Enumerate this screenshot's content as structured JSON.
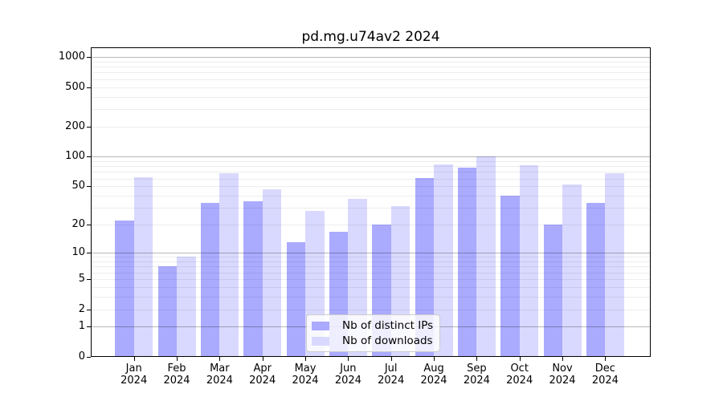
{
  "title": "pd.mg.u74av2 2024",
  "chart_data": {
    "type": "bar",
    "title": "pd.mg.u74av2 2024",
    "categories": [
      "Jan 2024",
      "Feb 2024",
      "Mar 2024",
      "Apr 2024",
      "May 2024",
      "Jun 2024",
      "Jul 2024",
      "Aug 2024",
      "Sep 2024",
      "Oct 2024",
      "Nov 2024",
      "Dec 2024"
    ],
    "series": [
      {
        "name": "Nb of distinct IPs",
        "color": "#aaaaff",
        "values": [
          22,
          7,
          34,
          35,
          13,
          17,
          20,
          61,
          77,
          40,
          20,
          34
        ]
      },
      {
        "name": "Nb of downloads",
        "color": "#d9d9ff",
        "values": [
          62,
          9,
          68,
          47,
          28,
          37,
          31,
          84,
          100,
          82,
          52,
          68
        ]
      }
    ],
    "yscale": "log1p",
    "y_ticks": [
      0,
      1,
      2,
      5,
      10,
      20,
      50,
      100,
      200,
      500,
      1000
    ],
    "ylim": [
      0,
      1250
    ],
    "grid": true,
    "legend_position": "lower center",
    "grid_major_color": "#b8b8b8",
    "grid_minor_color": "#ededed",
    "axis_color": "#000000"
  }
}
